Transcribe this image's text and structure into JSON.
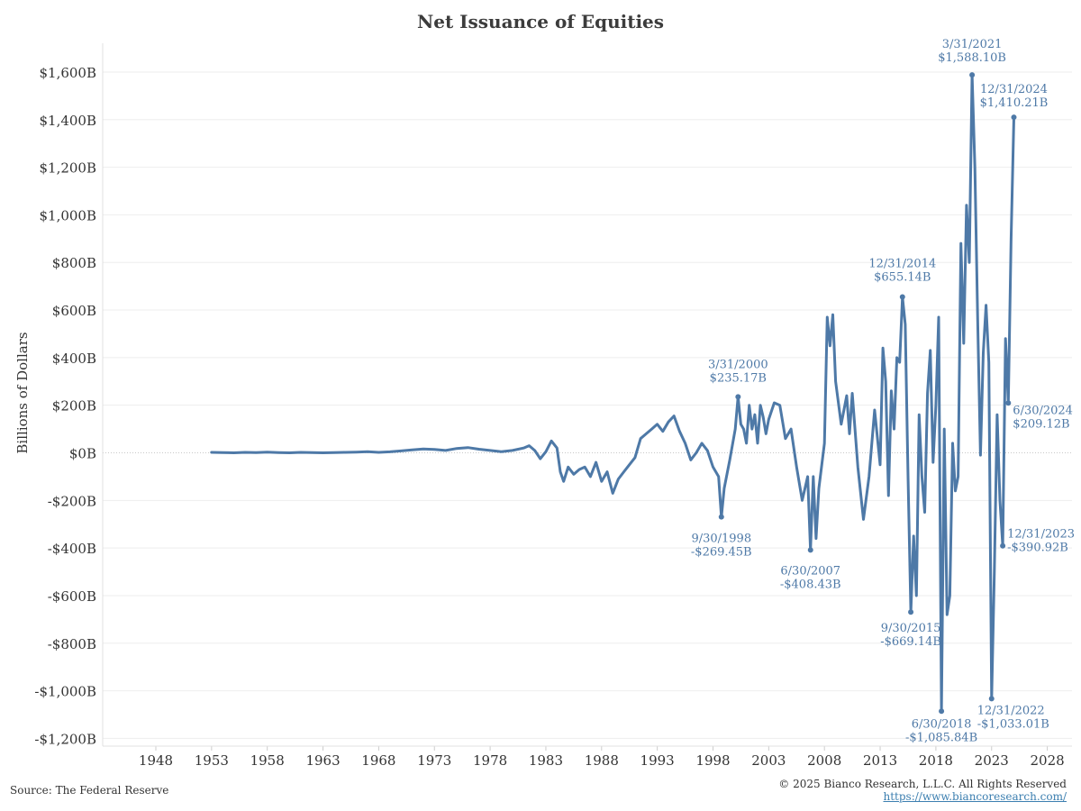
{
  "title": "Net Issuance of Equities",
  "source": "Source: The Federal Reserve",
  "copyright": "© 2025 Bianco Research, L.L.C. All Rights Reserved",
  "website": "https://www.biancoresearch.com/",
  "chart_data": {
    "type": "line",
    "title": "Net Issuance of Equities",
    "xlabel": "",
    "ylabel": "Billions of Dollars",
    "xlim": [
      1945,
      2030
    ],
    "ylim": [
      -1250,
      1600
    ],
    "x_ticks": [
      1948,
      1953,
      1958,
      1963,
      1968,
      1973,
      1978,
      1983,
      1988,
      1993,
      1998,
      2003,
      2008,
      2013,
      2018,
      2023,
      2028
    ],
    "y_ticks": [
      {
        "value": 1600,
        "label": "$1,600B"
      },
      {
        "value": 1400,
        "label": "$1,400B"
      },
      {
        "value": 1200,
        "label": "$1,200B"
      },
      {
        "value": 1000,
        "label": "$1,000B"
      },
      {
        "value": 800,
        "label": "$800B"
      },
      {
        "value": 600,
        "label": "$600B"
      },
      {
        "value": 400,
        "label": "$400B"
      },
      {
        "value": 200,
        "label": "$200B"
      },
      {
        "value": 0,
        "label": "$0B"
      },
      {
        "value": -200,
        "label": "-$200B"
      },
      {
        "value": -400,
        "label": "-$400B"
      },
      {
        "value": -600,
        "label": "-$600B"
      },
      {
        "value": -800,
        "label": "-$800B"
      },
      {
        "value": -1000,
        "label": "-$1,000B"
      },
      {
        "value": -1200,
        "label": "-$1,200B"
      }
    ],
    "line_color": "#4e79a7",
    "series": [
      {
        "points": [
          [
            1953.0,
            2
          ],
          [
            1954.0,
            1
          ],
          [
            1955.0,
            0
          ],
          [
            1956.0,
            2
          ],
          [
            1957.0,
            1
          ],
          [
            1958.0,
            3
          ],
          [
            1959.0,
            1
          ],
          [
            1960.0,
            0
          ],
          [
            1961.0,
            2
          ],
          [
            1962.0,
            1
          ],
          [
            1963.0,
            0
          ],
          [
            1964.0,
            1
          ],
          [
            1965.0,
            2
          ],
          [
            1966.0,
            3
          ],
          [
            1967.0,
            5
          ],
          [
            1968.0,
            2
          ],
          [
            1969.0,
            4
          ],
          [
            1970.0,
            8
          ],
          [
            1971.0,
            12
          ],
          [
            1972.0,
            16
          ],
          [
            1973.0,
            14
          ],
          [
            1974.0,
            10
          ],
          [
            1975.0,
            18
          ],
          [
            1976.0,
            22
          ],
          [
            1977.0,
            15
          ],
          [
            1978.0,
            10
          ],
          [
            1979.0,
            5
          ],
          [
            1980.0,
            10
          ],
          [
            1981.0,
            20
          ],
          [
            1981.5,
            30
          ],
          [
            1982.0,
            10
          ],
          [
            1982.5,
            -25
          ],
          [
            1983.0,
            5
          ],
          [
            1983.5,
            50
          ],
          [
            1984.0,
            20
          ],
          [
            1984.3,
            -80
          ],
          [
            1984.6,
            -120
          ],
          [
            1985.0,
            -60
          ],
          [
            1985.5,
            -90
          ],
          [
            1986.0,
            -70
          ],
          [
            1986.5,
            -60
          ],
          [
            1987.0,
            -100
          ],
          [
            1987.5,
            -40
          ],
          [
            1988.0,
            -120
          ],
          [
            1988.5,
            -80
          ],
          [
            1989.0,
            -170
          ],
          [
            1989.5,
            -110
          ],
          [
            1990.0,
            -80
          ],
          [
            1990.5,
            -50
          ],
          [
            1991.0,
            -20
          ],
          [
            1991.5,
            60
          ],
          [
            1992.0,
            80
          ],
          [
            1992.5,
            100
          ],
          [
            1993.0,
            120
          ],
          [
            1993.5,
            90
          ],
          [
            1994.0,
            130
          ],
          [
            1994.5,
            155
          ],
          [
            1995.0,
            90
          ],
          [
            1995.5,
            40
          ],
          [
            1996.0,
            -30
          ],
          [
            1996.5,
            0
          ],
          [
            1997.0,
            40
          ],
          [
            1997.5,
            10
          ],
          [
            1998.0,
            -60
          ],
          [
            1998.5,
            -100
          ],
          [
            1998.75,
            -269.45
          ],
          [
            1999.0,
            -150
          ],
          [
            1999.5,
            -30
          ],
          [
            2000.0,
            100
          ],
          [
            2000.25,
            235.17
          ],
          [
            2000.5,
            120
          ],
          [
            2000.75,
            100
          ],
          [
            2001.0,
            40
          ],
          [
            2001.25,
            200
          ],
          [
            2001.5,
            100
          ],
          [
            2001.75,
            160
          ],
          [
            2002.0,
            40
          ],
          [
            2002.25,
            200
          ],
          [
            2002.5,
            150
          ],
          [
            2002.75,
            80
          ],
          [
            2003.0,
            140
          ],
          [
            2003.5,
            210
          ],
          [
            2004.0,
            200
          ],
          [
            2004.5,
            60
          ],
          [
            2005.0,
            100
          ],
          [
            2005.5,
            -60
          ],
          [
            2006.0,
            -200
          ],
          [
            2006.5,
            -100
          ],
          [
            2006.75,
            -408.43
          ],
          [
            2007.0,
            -100
          ],
          [
            2007.25,
            -360
          ],
          [
            2007.5,
            -150
          ],
          [
            2008.0,
            40
          ],
          [
            2008.25,
            570
          ],
          [
            2008.5,
            450
          ],
          [
            2008.75,
            580
          ],
          [
            2009.0,
            300
          ],
          [
            2009.5,
            120
          ],
          [
            2010.0,
            240
          ],
          [
            2010.25,
            80
          ],
          [
            2010.5,
            250
          ],
          [
            2011.0,
            -60
          ],
          [
            2011.5,
            -280
          ],
          [
            2012.0,
            -100
          ],
          [
            2012.5,
            180
          ],
          [
            2013.0,
            -50
          ],
          [
            2013.25,
            440
          ],
          [
            2013.5,
            300
          ],
          [
            2013.75,
            -180
          ],
          [
            2014.0,
            260
          ],
          [
            2014.25,
            100
          ],
          [
            2014.5,
            400
          ],
          [
            2014.75,
            380
          ],
          [
            2015.0,
            655.14
          ],
          [
            2015.25,
            540
          ],
          [
            2015.5,
            -100
          ],
          [
            2015.75,
            -669.14
          ],
          [
            2016.0,
            -350
          ],
          [
            2016.25,
            -600
          ],
          [
            2016.5,
            160
          ],
          [
            2016.75,
            -100
          ],
          [
            2017.0,
            -250
          ],
          [
            2017.25,
            250
          ],
          [
            2017.5,
            430
          ],
          [
            2017.75,
            -40
          ],
          [
            2018.0,
            200
          ],
          [
            2018.25,
            570
          ],
          [
            2018.5,
            -1085.84
          ],
          [
            2018.75,
            100
          ],
          [
            2019.0,
            -680
          ],
          [
            2019.25,
            -600
          ],
          [
            2019.5,
            40
          ],
          [
            2019.75,
            -160
          ],
          [
            2020.0,
            -100
          ],
          [
            2020.25,
            880
          ],
          [
            2020.5,
            460
          ],
          [
            2020.75,
            1040
          ],
          [
            2021.0,
            800
          ],
          [
            2021.25,
            1588.1
          ],
          [
            2021.5,
            1200
          ],
          [
            2021.75,
            560
          ],
          [
            2022.0,
            -10
          ],
          [
            2022.25,
            420
          ],
          [
            2022.5,
            620
          ],
          [
            2022.75,
            380
          ],
          [
            2023.0,
            -1033.01
          ],
          [
            2023.25,
            -500
          ],
          [
            2023.5,
            160
          ],
          [
            2023.75,
            -200
          ],
          [
            2024.0,
            -390.92
          ],
          [
            2024.25,
            480
          ],
          [
            2024.5,
            209.12
          ],
          [
            2024.75,
            900
          ],
          [
            2025.0,
            1410.21
          ]
        ]
      }
    ],
    "annotations": [
      {
        "x": 1998.75,
        "y": -269.45,
        "date": "9/30/1998",
        "value": "-$269.45B",
        "anchor": "middle",
        "dx": 0,
        "dy": 28
      },
      {
        "x": 2000.25,
        "y": 235.17,
        "date": "3/31/2000",
        "value": "$235.17B",
        "anchor": "middle",
        "dx": 0,
        "dy": -32
      },
      {
        "x": 2006.75,
        "y": -408.43,
        "date": "6/30/2007",
        "value": "-$408.43B",
        "anchor": "middle",
        "dx": 0,
        "dy": 27
      },
      {
        "x": 2015.0,
        "y": 655.14,
        "date": "12/31/2014",
        "value": "$655.14B",
        "anchor": "middle",
        "dx": 0,
        "dy": -33
      },
      {
        "x": 2015.75,
        "y": -669.14,
        "date": "9/30/2015",
        "value": "-$669.14B",
        "anchor": "middle",
        "dx": 0,
        "dy": 22
      },
      {
        "x": 2018.5,
        "y": -1085.84,
        "date": "6/30/2018",
        "value": "-$1,085.84B",
        "anchor": "middle",
        "dx": 0,
        "dy": 18
      },
      {
        "x": 2021.25,
        "y": 1588.1,
        "date": "3/31/2021",
        "value": "$1,588.10B",
        "anchor": "middle",
        "dx": 0,
        "dy": -30
      },
      {
        "x": 2023.0,
        "y": -1033.01,
        "date": "12/31/2022",
        "value": "-$1,033.01B",
        "anchor": "start",
        "dx": -16,
        "dy": 17
      },
      {
        "x": 2024.0,
        "y": -390.92,
        "date": "12/31/2023",
        "value": "-$390.92B",
        "anchor": "start",
        "dx": 5,
        "dy": -9
      },
      {
        "x": 2024.5,
        "y": 209.12,
        "date": "6/30/2024",
        "value": "$209.12B",
        "anchor": "start",
        "dx": 5,
        "dy": 12
      },
      {
        "x": 2025.0,
        "y": 1410.21,
        "date": "12/31/2024",
        "value": "$1,410.21B",
        "anchor": "middle",
        "dx": 0,
        "dy": -27
      }
    ]
  }
}
